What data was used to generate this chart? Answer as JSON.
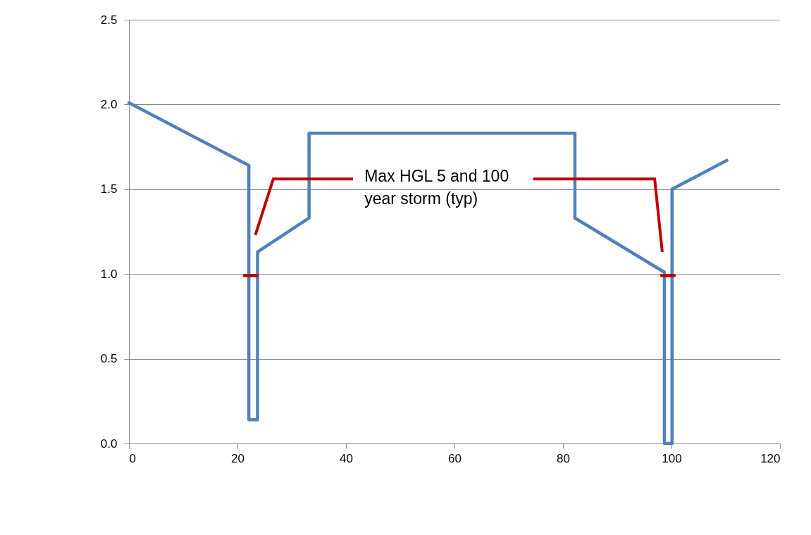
{
  "chart_data": {
    "type": "line",
    "series": [
      {
        "color": "#4f81bd",
        "x": [
          0,
          22.1,
          22.1,
          23.7,
          23.7,
          33.2,
          33.2,
          82.2,
          82.2,
          98.7,
          98.7,
          100.1,
          100.1,
          110.2
        ],
        "values": [
          2.01,
          1.64,
          0.14,
          0.14,
          1.13,
          1.33,
          1.83,
          1.83,
          1.33,
          1.01,
          0,
          0,
          1.5,
          1.67
        ]
      },
      {
        "color": "#c00000",
        "x": [
          21.3,
          23.6
        ],
        "values": [
          0.99,
          0.99
        ]
      },
      {
        "color": "#c00000",
        "x": [
          98.2,
          100.5
        ],
        "values": [
          0.99,
          0.99
        ]
      }
    ],
    "xlim": [
      0,
      120
    ],
    "xticks": [
      0,
      20,
      40,
      60,
      80,
      100,
      120
    ],
    "ylim": [
      0,
      2.5
    ],
    "yticks": [
      {
        "value": 0,
        "label": "0.0"
      },
      {
        "value": 0.5,
        "label": "0.5"
      },
      {
        "value": 1,
        "label": "1.0"
      },
      {
        "value": 1.5,
        "label": "1.5"
      },
      {
        "value": 2,
        "label": "2.0"
      },
      {
        "value": 2.5,
        "label": "2.5"
      }
    ],
    "grid": "y",
    "marker": "none",
    "annotations": [
      "Max HGL 5 and 100\nyear storm (typ)"
    ]
  }
}
